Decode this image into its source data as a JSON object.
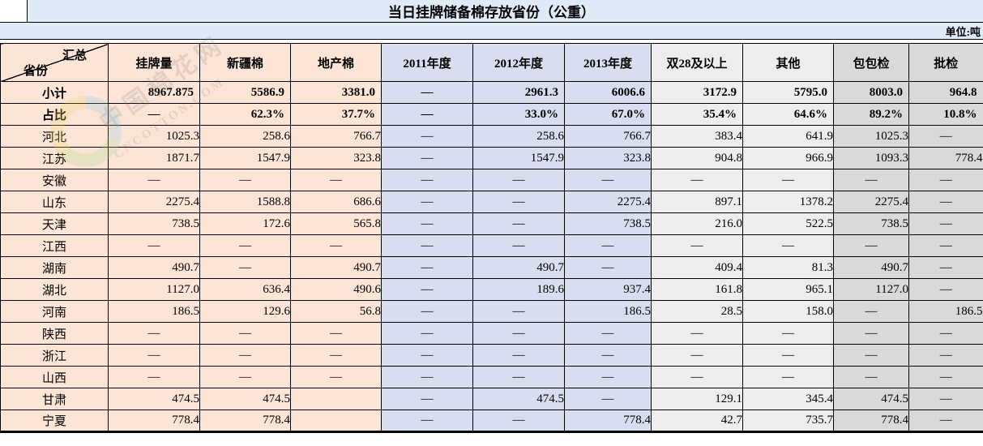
{
  "header": {
    "title": "当日挂牌储备棉存放省份（公重）",
    "unit_label": "单位:吨"
  },
  "watermark": {
    "line_cn": "中国棉花网",
    "line_en": "CNCOTTON.COM"
  },
  "colors": {
    "title_bg": "#DEEBF7",
    "peach": "#FCE4D6",
    "blue": "#D8DEEF",
    "light_gray": "#EDEDED",
    "gray": "#D9D9D9",
    "border": "#000000"
  },
  "chart_data": {
    "type": "table",
    "title": "当日挂牌储备棉存放省份（公重）",
    "unit": "单位:吨",
    "corner_top_right": "汇总",
    "corner_bottom_left": "省份",
    "columns": [
      "挂牌量",
      "新疆棉",
      "地产棉",
      "2011年度",
      "2012年度",
      "2013年度",
      "双28及以上",
      "其他",
      "包包检",
      "批检"
    ],
    "rows": [
      {
        "label": "小计",
        "bold": true,
        "values": [
          "8967.875",
          "5586.9",
          "3381.0",
          "—",
          "2961.3",
          "6006.6",
          "3172.9",
          "5795.0",
          "8003.0",
          "964.8"
        ]
      },
      {
        "label": "占比",
        "bold": true,
        "values": [
          "—",
          "62.3%",
          "37.7%",
          "—",
          "33.0%",
          "67.0%",
          "35.4%",
          "64.6%",
          "89.2%",
          "10.8%"
        ]
      },
      {
        "label": "河北",
        "bold": false,
        "values": [
          "1025.3",
          "258.6",
          "766.7",
          "—",
          "258.6",
          "766.7",
          "383.4",
          "641.9",
          "1025.3",
          "—"
        ]
      },
      {
        "label": "江苏",
        "bold": false,
        "values": [
          "1871.7",
          "1547.9",
          "323.8",
          "—",
          "1547.9",
          "323.8",
          "904.8",
          "966.9",
          "1093.3",
          "778.4"
        ]
      },
      {
        "label": "安徽",
        "bold": false,
        "values": [
          "—",
          "—",
          "—",
          "—",
          "—",
          "—",
          "—",
          "—",
          "—",
          "—"
        ]
      },
      {
        "label": "山东",
        "bold": false,
        "values": [
          "2275.4",
          "1588.8",
          "686.6",
          "—",
          "—",
          "2275.4",
          "897.1",
          "1378.2",
          "2275.4",
          "—"
        ]
      },
      {
        "label": "天津",
        "bold": false,
        "values": [
          "738.5",
          "172.6",
          "565.8",
          "—",
          "—",
          "738.5",
          "216.0",
          "522.5",
          "738.5",
          "—"
        ]
      },
      {
        "label": "江西",
        "bold": false,
        "values": [
          "—",
          "—",
          "—",
          "—",
          "—",
          "—",
          "—",
          "—",
          "—",
          "—"
        ]
      },
      {
        "label": "湖南",
        "bold": false,
        "values": [
          "490.7",
          "—",
          "490.7",
          "—",
          "490.7",
          "—",
          "409.4",
          "81.3",
          "490.7",
          "—"
        ]
      },
      {
        "label": "湖北",
        "bold": false,
        "values": [
          "1127.0",
          "636.4",
          "490.6",
          "—",
          "189.6",
          "937.4",
          "161.8",
          "965.1",
          "1127.0",
          "—"
        ]
      },
      {
        "label": "河南",
        "bold": false,
        "values": [
          "186.5",
          "129.6",
          "56.8",
          "—",
          "—",
          "186.5",
          "28.5",
          "158.0",
          "—",
          "186.5"
        ]
      },
      {
        "label": "陕西",
        "bold": false,
        "values": [
          "—",
          "—",
          "—",
          "—",
          "—",
          "—",
          "—",
          "—",
          "—",
          "—"
        ]
      },
      {
        "label": "浙江",
        "bold": false,
        "values": [
          "—",
          "—",
          "—",
          "—",
          "—",
          "—",
          "—",
          "—",
          "—",
          "—"
        ]
      },
      {
        "label": "山西",
        "bold": false,
        "values": [
          "—",
          "—",
          "—",
          "—",
          "—",
          "—",
          "—",
          "—",
          "—",
          "—"
        ]
      },
      {
        "label": "甘肃",
        "bold": false,
        "values": [
          "474.5",
          "474.5",
          "",
          "—",
          "474.5",
          "—",
          "129.1",
          "345.4",
          "474.5",
          "—"
        ]
      },
      {
        "label": "宁夏",
        "bold": false,
        "values": [
          "778.4",
          "778.4",
          "",
          "—",
          "—",
          "778.4",
          "42.7",
          "735.7",
          "778.4",
          "—"
        ]
      }
    ]
  }
}
